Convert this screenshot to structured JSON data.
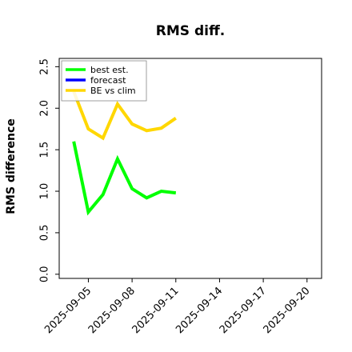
{
  "chart_data": {
    "type": "line",
    "title": "RMS diff.",
    "xlabel": "",
    "ylabel": "RMS difference",
    "ylim": [
      -0.05,
      2.6
    ],
    "xlim": [
      "2025-09-03",
      "2025-09-21"
    ],
    "yticks": [
      "0.0",
      "0.5",
      "1.0",
      "1.5",
      "2.0",
      "2.5"
    ],
    "xticks": [
      "2025-09-05",
      "2025-09-08",
      "2025-09-11",
      "2025-09-14",
      "2025-09-17",
      "2025-09-20"
    ],
    "highlight_tick": "2025-09-11",
    "highlight_color": "#228B22",
    "grid": false,
    "legend_position": "top-left",
    "series": [
      {
        "name": "best est.",
        "color": "#00ff00",
        "x": [
          "2025-09-04",
          "2025-09-05",
          "2025-09-06",
          "2025-09-07",
          "2025-09-08",
          "2025-09-09",
          "2025-09-10",
          "2025-09-11"
        ],
        "values": [
          1.6,
          0.75,
          0.96,
          1.39,
          1.03,
          0.92,
          1.0,
          0.98
        ]
      },
      {
        "name": "forecast",
        "color": "#0000ff",
        "x": [],
        "values": []
      },
      {
        "name": "BE vs clim",
        "color": "#ffd700",
        "x": [
          "2025-09-04",
          "2025-09-05",
          "2025-09-06",
          "2025-09-07",
          "2025-09-08",
          "2025-09-09",
          "2025-09-10",
          "2025-09-11"
        ],
        "values": [
          2.2,
          1.75,
          1.64,
          2.05,
          1.81,
          1.73,
          1.76,
          1.88
        ]
      }
    ]
  }
}
